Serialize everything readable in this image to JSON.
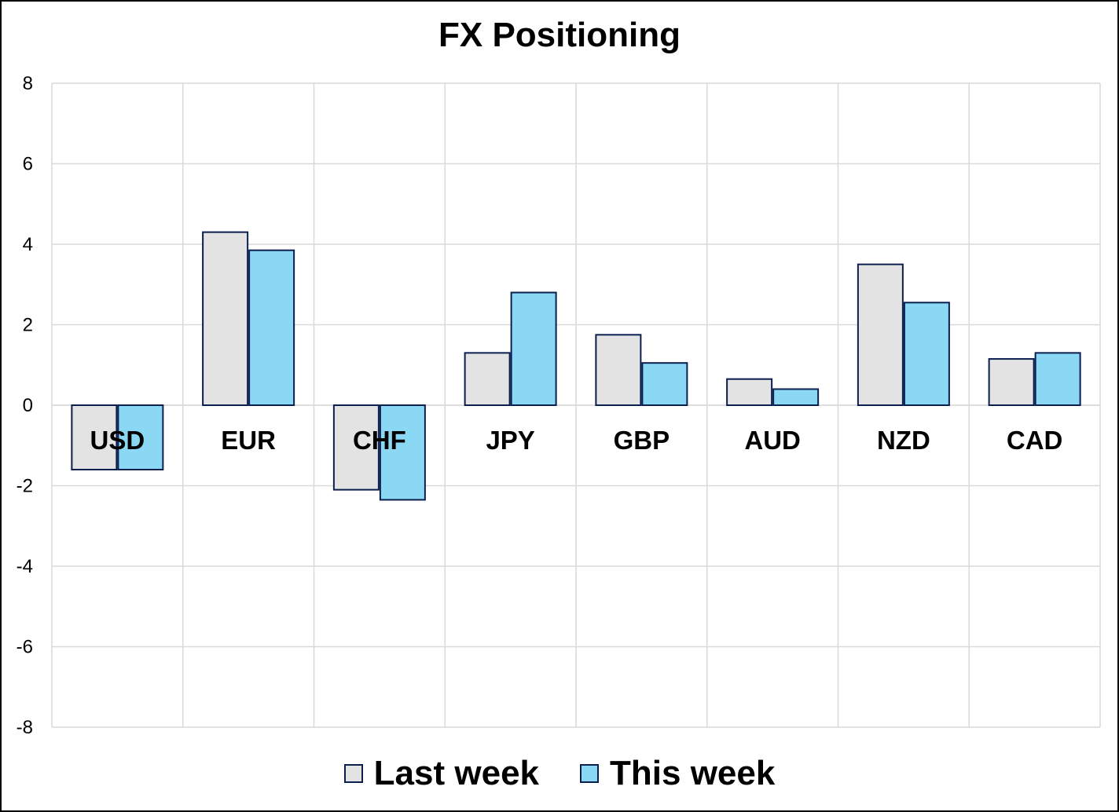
{
  "chart_data": {
    "type": "bar",
    "title": "FX Positioning",
    "xlabel": "",
    "ylabel": "",
    "ylim": [
      -8,
      8
    ],
    "yticks": [
      "8",
      "6",
      "4",
      "2",
      "0",
      "-2",
      "-4",
      "-6",
      "-8"
    ],
    "grid": true,
    "legend_position": "bottom",
    "categories": [
      "USD",
      "EUR",
      "CHF",
      "JPY",
      "GBP",
      "AUD",
      "NZD",
      "CAD"
    ],
    "series": [
      {
        "name": "Last week",
        "color": "#e3e3e3",
        "values": [
          -1.6,
          4.3,
          -2.1,
          1.3,
          1.75,
          0.65,
          3.5,
          1.15
        ]
      },
      {
        "name": "This week",
        "color": "#8ad8f4",
        "values": [
          -1.6,
          3.85,
          -2.35,
          2.8,
          1.05,
          0.4,
          2.55,
          1.3
        ]
      }
    ]
  }
}
